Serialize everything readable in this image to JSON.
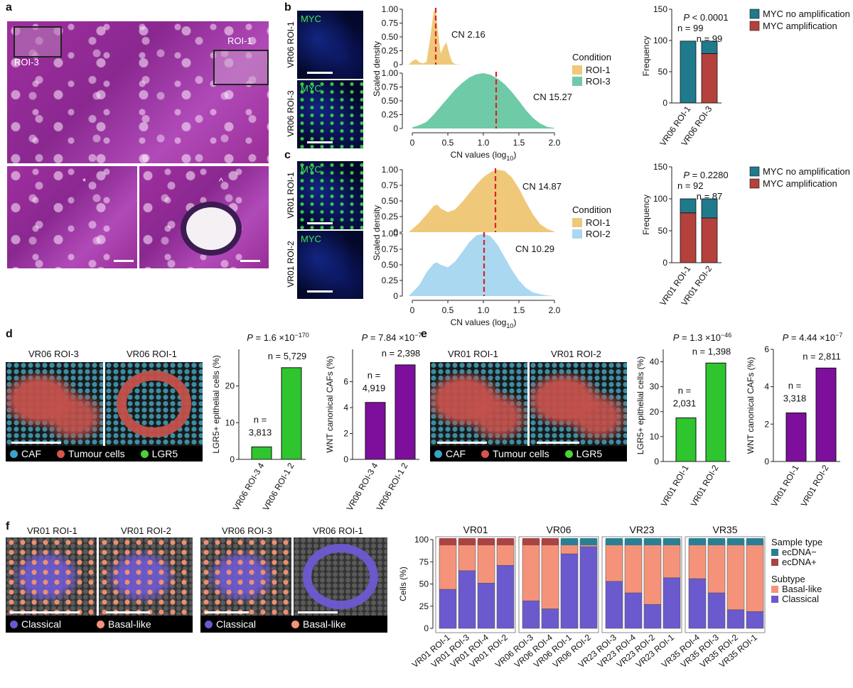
{
  "panels": {
    "a": {
      "label": "a",
      "roi3": "ROI-3",
      "roi1": "ROI-1",
      "star": "*",
      "caret": "^"
    },
    "b": {
      "label": "b",
      "micro_label": "MYC",
      "img1": "VR06 ROI-1",
      "img2": "VR06 ROI-3"
    },
    "c": {
      "label": "c",
      "micro_label": "MYC",
      "img1": "VR01 ROI-1",
      "img2": "VR01 ROI-2"
    },
    "d": {
      "label": "d",
      "img1": "VR06 ROI-3",
      "img2": "VR06 ROI-1",
      "legend": [
        "CAF",
        "Tumour cells",
        "LGR5"
      ]
    },
    "e": {
      "label": "e",
      "img1": "VR01 ROI-1",
      "img2": "VR01 ROI-2",
      "legend": [
        "CAF",
        "Tumour cells",
        "LGR5"
      ]
    },
    "f": {
      "label": "f",
      "img1": "VR01 ROI-1",
      "img2": "VR01 ROI-2",
      "img3": "VR06 ROI-3",
      "img4": "VR06 ROI-1",
      "legend": [
        "Classical",
        "Basal-like"
      ]
    }
  },
  "colors": {
    "caf": "#3ba3c9",
    "tumour": "#d9534f",
    "lgr5": "#4cd137",
    "roi1_density": "#efc87a",
    "roi3_density": "#6fcaa8",
    "roi2_density": "#a9d8f0",
    "no_amp": "#1f7a8c",
    "amp": "#b5413c",
    "green_bar": "#2ec52e",
    "purple_bar": "#7d0f9c",
    "basal": "#f5937a",
    "classical": "#6a5acd",
    "ecdna_neg": "#2a7f94",
    "ecdna_pos": "#a84444"
  },
  "chart_data": [
    {
      "id": "b-density",
      "type": "area",
      "xlabel": "CN values (log10)",
      "ylabel": "Scaled density",
      "xticks": [
        "0",
        "0.5",
        "1.0",
        "1.5",
        "2.0"
      ],
      "yticks": [
        "0",
        "0.25",
        "0.50",
        "0.75",
        "1.00"
      ],
      "xlim": [
        -0.1,
        2.1
      ],
      "ylim": [
        0,
        1
      ],
      "legend_title": "Condition",
      "series": [
        {
          "name": "ROI-1",
          "annotation": "CN 2.16",
          "median_log10": 0.33,
          "x": [
            -0.05,
            0.0,
            0.05,
            0.1,
            0.15,
            0.2,
            0.25,
            0.3,
            0.33,
            0.36,
            0.4,
            0.45,
            0.48,
            0.52,
            0.56,
            0.6,
            0.7
          ],
          "y": [
            0,
            0.06,
            0.1,
            0.04,
            0.02,
            0.05,
            0.45,
            0.95,
            1.0,
            0.6,
            0.2,
            0.35,
            0.4,
            0.2,
            0.05,
            0.01,
            0
          ]
        },
        {
          "name": "ROI-3",
          "annotation": "CN 15.27",
          "median_log10": 1.18,
          "x": [
            0.0,
            0.1,
            0.2,
            0.3,
            0.4,
            0.5,
            0.6,
            0.7,
            0.8,
            0.9,
            1.0,
            1.1,
            1.2,
            1.3,
            1.4,
            1.5,
            1.6,
            1.7,
            1.8,
            1.9,
            2.0
          ],
          "y": [
            0.02,
            0.06,
            0.12,
            0.25,
            0.4,
            0.55,
            0.7,
            0.82,
            0.92,
            0.98,
            1.0,
            0.97,
            0.9,
            0.8,
            0.66,
            0.5,
            0.33,
            0.19,
            0.09,
            0.03,
            0.01
          ]
        }
      ]
    },
    {
      "id": "b-bar",
      "type": "bar",
      "ylabel": "Frequency",
      "pvalue": "P < 0.0001",
      "n_left": "n = 99",
      "n_right": "n = 99",
      "categories": [
        "VR06 ROI-1",
        "VR06 ROI-3"
      ],
      "ylim": [
        0,
        150
      ],
      "yticks": [
        "0",
        "50",
        "100",
        "150"
      ],
      "series": [
        {
          "name": "MYC amplification",
          "values": [
            0,
            79
          ]
        },
        {
          "name": "MYC no amplification",
          "values": [
            99,
            20
          ]
        }
      ]
    },
    {
      "id": "c-density",
      "type": "area",
      "xlabel": "CN values (log10)",
      "ylabel": "Scaled density",
      "xticks": [
        "0",
        "0.5",
        "1.0",
        "1.5",
        "2.0"
      ],
      "yticks": [
        "0",
        "0.25",
        "0.50",
        "0.75",
        "1.00"
      ],
      "xlim": [
        -0.1,
        2.1
      ],
      "ylim": [
        0,
        1
      ],
      "legend_title": "Condition",
      "series": [
        {
          "name": "ROI-1",
          "annotation": "CN 14.87",
          "median_log10": 1.17,
          "x": [
            -0.05,
            0.0,
            0.1,
            0.2,
            0.3,
            0.35,
            0.4,
            0.5,
            0.6,
            0.7,
            0.8,
            0.9,
            1.0,
            1.1,
            1.2,
            1.3,
            1.4,
            1.5,
            1.6,
            1.7,
            1.8,
            1.9,
            2.0
          ],
          "y": [
            0,
            0.05,
            0.15,
            0.28,
            0.42,
            0.44,
            0.38,
            0.32,
            0.36,
            0.48,
            0.62,
            0.76,
            0.88,
            0.96,
            1.0,
            0.98,
            0.88,
            0.7,
            0.48,
            0.28,
            0.13,
            0.05,
            0.01
          ]
        },
        {
          "name": "ROI-2",
          "annotation": "CN 10.29",
          "median_log10": 1.01,
          "x": [
            -0.05,
            0.0,
            0.1,
            0.2,
            0.3,
            0.35,
            0.4,
            0.5,
            0.6,
            0.7,
            0.8,
            0.9,
            1.0,
            1.1,
            1.2,
            1.3,
            1.4,
            1.5,
            1.6,
            1.7,
            1.8,
            1.9,
            2.0
          ],
          "y": [
            0,
            0.06,
            0.18,
            0.38,
            0.52,
            0.54,
            0.5,
            0.46,
            0.55,
            0.7,
            0.86,
            0.97,
            1.0,
            0.96,
            0.82,
            0.62,
            0.42,
            0.25,
            0.13,
            0.06,
            0.03,
            0.01,
            0
          ]
        }
      ]
    },
    {
      "id": "c-bar",
      "type": "bar",
      "ylabel": "Frequency",
      "pvalue": "P = 0.2280",
      "n_left": "n = 92",
      "n_right": "n = 87",
      "categories": [
        "VR01 ROI-1",
        "VR01 ROI-2"
      ],
      "ylim": [
        0,
        150
      ],
      "yticks": [
        "0",
        "50",
        "100",
        "150"
      ],
      "series": [
        {
          "name": "MYC amplification",
          "values": [
            78,
            70
          ]
        },
        {
          "name": "MYC no amplification",
          "values": [
            22,
            30
          ]
        }
      ]
    },
    {
      "id": "d-lgr5",
      "type": "bar",
      "ylabel": "LGR5+ epithelial cells (%)",
      "pvalue": "P = 1.6 ×10−170",
      "categories": [
        "VR06 ROI-3 4",
        "VR06 ROI-1 2"
      ],
      "values": [
        3.4,
        25.0
      ],
      "labels": [
        [
          "n =",
          "3,813"
        ],
        [
          "n = 5,729"
        ]
      ],
      "ylim": [
        0,
        30
      ],
      "yticks": [
        "0",
        "10",
        "20"
      ]
    },
    {
      "id": "d-wnt",
      "type": "bar",
      "ylabel": "WNT canonical CAFs (%)",
      "pvalue": "P = 7.84 ×10−7",
      "categories": [
        "VR06 ROI-3 4",
        "VR06 ROI-1 2"
      ],
      "values": [
        4.4,
        7.3
      ],
      "labels": [
        [
          "n =",
          "4,919"
        ],
        [
          "n = 2,398"
        ]
      ],
      "ylim": [
        0,
        8.5
      ],
      "yticks": [
        "0",
        "2",
        "4",
        "6"
      ]
    },
    {
      "id": "e-lgr5",
      "type": "bar",
      "ylabel": "LGR5+ epithelial cells (%)",
      "pvalue": "P = 1.3 ×10−46",
      "categories": [
        "VR01 ROI-1",
        "VR01 ROI-2"
      ],
      "values": [
        17.5,
        39.5
      ],
      "labels": [
        [
          "n =",
          "2,031"
        ],
        [
          "n = 1,398"
        ]
      ],
      "ylim": [
        0,
        45
      ],
      "yticks": [
        "0",
        "10",
        "20",
        "30",
        "40"
      ]
    },
    {
      "id": "e-wnt",
      "type": "bar",
      "ylabel": "WNT canonical CAFs (%)",
      "pvalue": "P = 4.44 ×10−7",
      "categories": [
        "VR01 ROI-1",
        "VR01 ROI-2"
      ],
      "values": [
        2.6,
        5.0
      ],
      "labels": [
        [
          "n =",
          "3,318"
        ],
        [
          "n = 2,811"
        ]
      ],
      "ylim": [
        0,
        6
      ],
      "yticks": [
        "0",
        "2",
        "4",
        "6"
      ]
    },
    {
      "id": "f-stacked",
      "type": "bar",
      "ylabel": "Cells (%)",
      "yticks": [
        "0",
        "25",
        "50",
        "75",
        "100"
      ],
      "ylim": [
        0,
        105
      ],
      "groups": [
        {
          "name": "VR01",
          "categories": [
            "VR01 ROI-1",
            "VR01 ROI-3",
            "VR01 ROI-4",
            "VR01 ROI-2"
          ],
          "classical": [
            44,
            65,
            51,
            71
          ],
          "sample": [
            "pos",
            "pos",
            "pos",
            "pos"
          ]
        },
        {
          "name": "VR06",
          "categories": [
            "VR06 ROI-3",
            "VR06 ROI-4",
            "VR06 ROI-1",
            "VR06 ROI-2"
          ],
          "classical": [
            31,
            22,
            84,
            92
          ],
          "sample": [
            "pos",
            "pos",
            "neg",
            "neg"
          ]
        },
        {
          "name": "VR23",
          "categories": [
            "VR23 ROI-3",
            "VR23 ROI-4",
            "VR23 ROI-2",
            "VR23 ROI-1"
          ],
          "classical": [
            53,
            40,
            27,
            57
          ],
          "sample": [
            "neg",
            "neg",
            "neg",
            "neg"
          ]
        },
        {
          "name": "VR35",
          "categories": [
            "VR35 ROI-4",
            "VR35 ROI-3",
            "VR35 ROI-2",
            "VR35 ROI-1"
          ],
          "classical": [
            56,
            40,
            21,
            19
          ],
          "sample": [
            "neg",
            "neg",
            "neg",
            "neg"
          ]
        }
      ],
      "legend": {
        "sample_title": "Sample type",
        "sample_items": [
          "ecDNA−",
          "ecDNA+"
        ],
        "subtype_title": "Subtype",
        "subtype_items": [
          "Basal-like",
          "Classical"
        ]
      }
    }
  ]
}
